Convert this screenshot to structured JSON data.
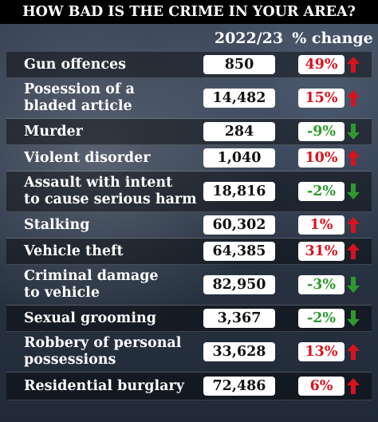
{
  "chart_data": {
    "type": "table",
    "title": "HOW BAD IS THE CRIME IN YOUR AREA?",
    "columns": [
      "2022/23",
      "% change"
    ],
    "colors": {
      "increase": "#d8121f",
      "decrease": "#2e9a2e"
    },
    "rows": [
      {
        "category": "Gun offences",
        "count": "850",
        "change": "49%",
        "direction": "up"
      },
      {
        "category": "Posession of a\nbladed article",
        "count": "14,482",
        "change": "15%",
        "direction": "up"
      },
      {
        "category": "Murder",
        "count": "284",
        "change": "-9%",
        "direction": "down"
      },
      {
        "category": "Violent disorder",
        "count": "1,040",
        "change": "10%",
        "direction": "up"
      },
      {
        "category": "Assault with intent\nto cause serious harm",
        "count": "18,816",
        "change": "-2%",
        "direction": "down"
      },
      {
        "category": "Stalking",
        "count": "60,302",
        "change": "1%",
        "direction": "up"
      },
      {
        "category": "Vehicle theft",
        "count": "64,385",
        "change": "31%",
        "direction": "up"
      },
      {
        "category": "Criminal damage\nto vehicle",
        "count": "82,950",
        "change": "-3%",
        "direction": "down"
      },
      {
        "category": "Sexual grooming",
        "count": "3,367",
        "change": "-2%",
        "direction": "down"
      },
      {
        "category": "Robbery of personal\npossessions",
        "count": "33,628",
        "change": "13%",
        "direction": "up"
      },
      {
        "category": "Residential burglary",
        "count": "72,486",
        "change": "6%",
        "direction": "up"
      }
    ]
  }
}
